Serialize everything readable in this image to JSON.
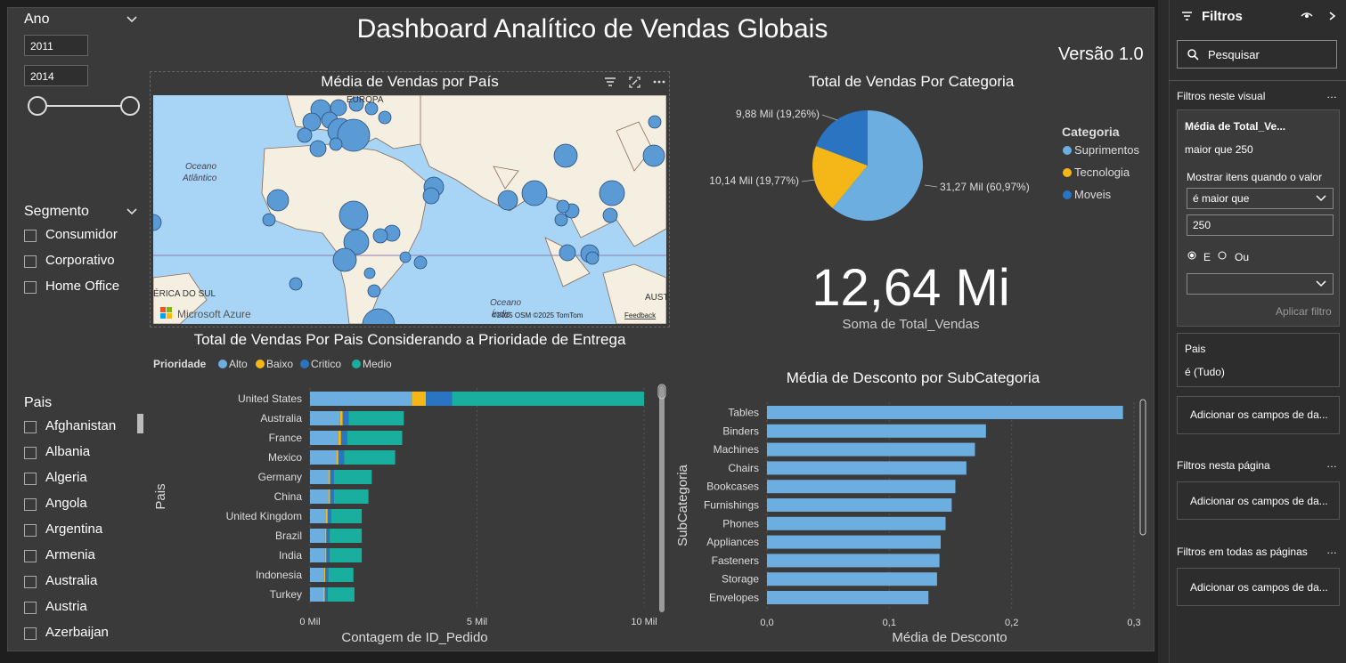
{
  "report": {
    "title": "Dashboard Analítico de Vendas Globais",
    "version": "Versão 1.0"
  },
  "slicers": {
    "ano": {
      "title": "Ano",
      "start": "2011",
      "end": "2014"
    },
    "segmento": {
      "title": "Segmento",
      "items": [
        "Consumidor",
        "Corporativo",
        "Home Office"
      ]
    },
    "pais": {
      "title": "Pais",
      "items": [
        "Afghanistan",
        "Albania",
        "Algeria",
        "Angola",
        "Argentina",
        "Armenia",
        "Australia",
        "Austria",
        "Azerbaijan"
      ]
    }
  },
  "map": {
    "title": "Média de Vendas por País",
    "labels": {
      "europa": "EUROPA",
      "oceano_atlantico_1": "Oceano",
      "oceano_atlantico_2": "Atlântico",
      "america_sul": "ÉRICA DO SUL",
      "oceano_indico_1": "Oceano",
      "oceano_indico_2": "Índic",
      "austr": "AUSTR"
    },
    "attribution": "©2025 OSM ©2025 TomTom",
    "feedback": "Feedback",
    "brand": "Microsoft Azure",
    "icons": [
      "filter-icon",
      "focus-mode-icon",
      "more-options-icon"
    ],
    "colors": {
      "sea": "#a8d4f5",
      "land": "#f4efe1",
      "bubble": "#5b9bd5"
    }
  },
  "pie": {
    "title": "Total de Vendas Por Categoria",
    "legend_title": "Categoria",
    "chart_data": {
      "type": "pie",
      "title": "Total de Vendas Por Categoria",
      "legend_title": "Categoria",
      "legend_position": "right",
      "slices": [
        {
          "name": "Suprimentos",
          "label": "31,27 Mil (60,97%)",
          "value": 31.27,
          "percent": 60.97,
          "color": "#6caee0"
        },
        {
          "name": "Tecnologia",
          "label": "10,14 Mil (19,77%)",
          "value": 10.14,
          "percent": 19.77,
          "color": "#f5b718"
        },
        {
          "name": "Moveis",
          "label": "9,88 Mil (19,26%)",
          "value": 9.88,
          "percent": 19.26,
          "color": "#2a74c1"
        }
      ]
    }
  },
  "kpi": {
    "value": "12,64 Mi",
    "label": "Soma de Total_Vendas"
  },
  "country_bar": {
    "title": "Total de Vendas Por Pais Considerando a Prioridade de Entrega",
    "legend_title": "Prioridade",
    "chart_data": {
      "type": "bar",
      "orientation": "horizontal",
      "stacked": true,
      "title": "Total de Vendas Por Pais Considerando a Prioridade de Entrega",
      "xlabel": "Contagem de ID_Pedido",
      "ylabel": "Pais",
      "xlim": [
        0,
        10
      ],
      "xticks": [
        "0 Mil",
        "5 Mil",
        "10 Mil"
      ],
      "legend_position": "top-left",
      "categories": [
        "United States",
        "Australia",
        "France",
        "Mexico",
        "Germany",
        "China",
        "United Kingdom",
        "Brazil",
        "India",
        "Indonesia",
        "Turkey"
      ],
      "series": [
        {
          "name": "Alto",
          "color": "#6caee0",
          "values": [
            3.05,
            0.9,
            0.85,
            0.78,
            0.55,
            0.55,
            0.48,
            0.45,
            0.45,
            0.42,
            0.4
          ]
        },
        {
          "name": "Baixo",
          "color": "#f5b718",
          "values": [
            0.42,
            0.08,
            0.08,
            0.07,
            0.05,
            0.05,
            0.05,
            0.04,
            0.04,
            0.04,
            0.04
          ]
        },
        {
          "name": "Critico",
          "color": "#2a74c1",
          "values": [
            0.78,
            0.18,
            0.18,
            0.17,
            0.12,
            0.12,
            0.1,
            0.1,
            0.1,
            0.09,
            0.09
          ]
        },
        {
          "name": "Medio",
          "color": "#1aae9f",
          "values": [
            5.75,
            1.65,
            1.65,
            1.53,
            1.13,
            1.03,
            0.92,
            0.96,
            0.96,
            0.75,
            0.8
          ]
        }
      ]
    }
  },
  "discount_bar": {
    "title": "Média de Desconto por SubCategoria",
    "chart_data": {
      "type": "bar",
      "orientation": "horizontal",
      "title": "Média de Desconto por SubCategoria",
      "xlabel": "Média de Desconto",
      "ylabel": "SubCategoria",
      "xlim": [
        0,
        0.3
      ],
      "xticks": [
        "0,0",
        "0,1",
        "0,2",
        "0,3"
      ],
      "categories": [
        "Tables",
        "Binders",
        "Machines",
        "Chairs",
        "Bookcases",
        "Furnishings",
        "Phones",
        "Appliances",
        "Fasteners",
        "Storage",
        "Envelopes"
      ],
      "values": [
        0.291,
        0.179,
        0.17,
        0.163,
        0.154,
        0.151,
        0.146,
        0.142,
        0.141,
        0.139,
        0.132
      ],
      "color": "#6caee0"
    }
  },
  "filters_pane": {
    "title": "Filtros",
    "search_placeholder": "Pesquisar",
    "section_visual": "Filtros neste visual",
    "card1": {
      "field": "Média de Total_Ve...",
      "summary": "maior que 250",
      "show_items": "Mostrar itens quando o valor",
      "operator": "é maior que",
      "value": "250",
      "and_label": "E",
      "or_label": "Ou",
      "apply": "Aplicar filtro"
    },
    "card2": {
      "field": "Pais",
      "summary": "é (Tudo)"
    },
    "add_fields": "Adicionar os campos de da...",
    "section_page": "Filtros nesta página",
    "section_all": "Filtros em todas as páginas"
  }
}
